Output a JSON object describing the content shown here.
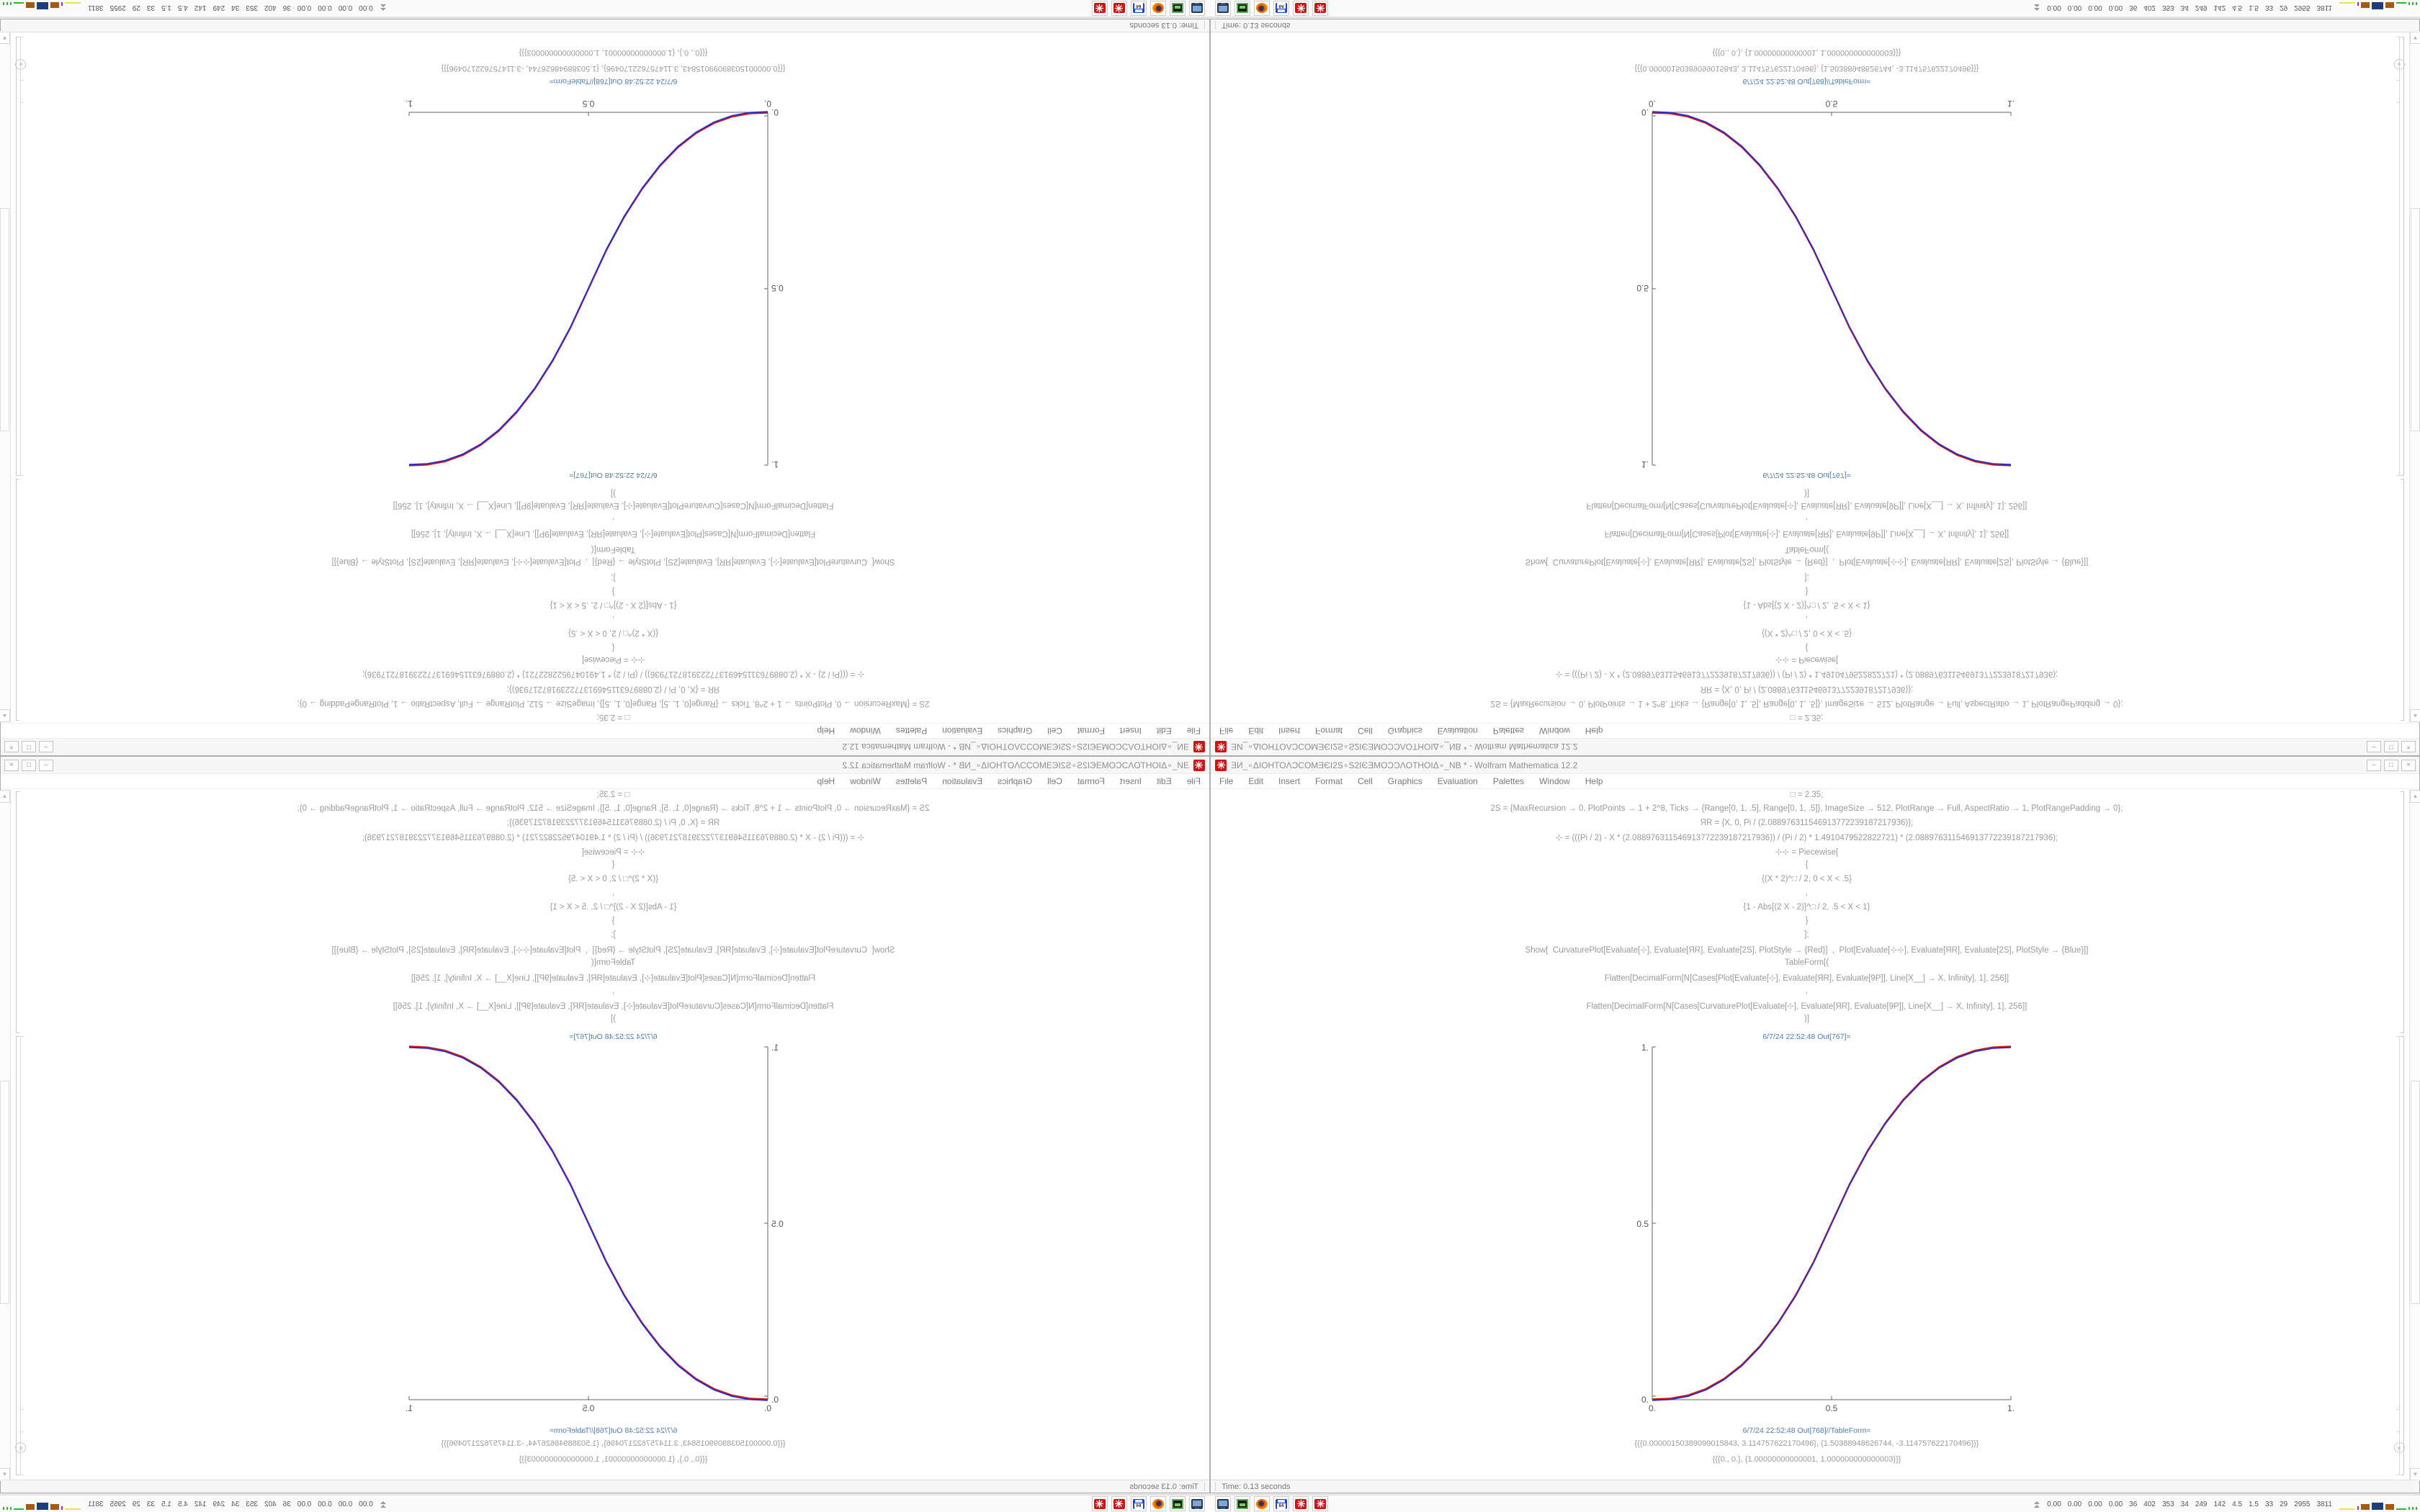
{
  "window": {
    "title": "ƎИ_∘ΔIOHTOΛƆCOMƎЄI2S∘S2IЄƎMOƆƆΛOTHOIΔ∘_NB * - Wolfram Mathematica 12.2",
    "controls": {
      "minimize": "–",
      "maximize": "□",
      "close": "×"
    },
    "app_icon_color": "#cc1616"
  },
  "menu": {
    "items": [
      "File",
      "Edit",
      "Insert",
      "Format",
      "Cell",
      "Graphics",
      "Evaluation",
      "Palettes",
      "Window",
      "Help"
    ]
  },
  "notebook": {
    "code_lines": [
      "□ = 2.35;",
      "2S = {MaxRecursion → 0, PlotPoints → 1 + 2^8, Ticks → {Range[0, 1, .5], Range[0, 1, .5]}, ImageSize → 512, PlotRange → Full, AspectRatio → 1, PlotRangePadding → 0};",
      "ЯR = {X, 0, Pi / (2.088976311546913772239187217936)};",
      "⊹ = (((Pi / 2) - X * (2.088976311546913772239187217936)) / (Pi / 2) * 1.4910479522822721) * (2.088976311546913772239187217936);",
      "⊹⊹ = Piecewise[",
      "{",
      "{(X * 2)^□ / 2, 0 < X < .5}",
      ",",
      "{1 - Abs[(2 X - 2)]^□ / 2, .5 < X < 1}",
      "}",
      "];",
      "Show[  CurvaturePlot[Evaluate[⊹], Evaluate[ЯR], Evaluate[2S], PlotStyle → {Red}]  ,  Plot[Evaluate[⊹⊹], Evaluate[ЯR], Evaluate[2S], PlotStyle → {Blue}]]",
      "TableForm[(",
      "Flatten[DecimalForm[N[Cases[Plot[Evaluate[⊹], Evaluate[ЯR], Evaluate[9P]], Line[X__] → X, Infinity], 1], 256]]",
      ",",
      "Flatten[DecimalForm[N[Cases[CurvaturePlot[Evaluate[⊹], Evaluate[ЯR], Evaluate[9P]], Line[X__] → X, Infinity], 1], 256]]",
      ")]"
    ],
    "out_plot_label": "6/7/24 22:52:48 Out[767]=",
    "out_table_label": "6/7/24 22:52:48 Out[768]//TableForm=",
    "table_rows": [
      "{{{0.00000150389099015843, 3.114757622170496}, {1.50388948626744, -3.114757622170496}}}",
      "{{{0., 0.}, {1.00000000000001, 1.000000000000003}}}"
    ],
    "scroll_up_glyph": "▲",
    "scroll_down_glyph": "▼",
    "jump_end_glyph": "»"
  },
  "status_bar": {
    "time_text": "Time: 0.13 seconds"
  },
  "taskbar": {
    "icons": [
      "display-settings-icon",
      "package-drive-icon",
      "firefox-icon",
      "floppy-64-icon",
      "mathematica-icon",
      "mathematica-icon"
    ],
    "stats": [
      "0.00",
      "0.00",
      "0.00",
      "0.00",
      "36",
      "402",
      "353",
      "34",
      "249",
      "142",
      "4.5",
      "1.5",
      "33",
      "29",
      "2955",
      "3811"
    ],
    "graph_colors": [
      "#e8e455",
      "#8b2fc9",
      "#a45a10",
      "#1f3d7a",
      "#a45a10",
      "#35b235",
      "#35b235"
    ]
  },
  "colors": {
    "curve_red": "#d01818",
    "curve_blue": "#2a2ac8",
    "cell_label_blue": "#4e7bb0",
    "code_gray": "#9a9a9a",
    "app_red": "#cc1616"
  },
  "chart_data": {
    "type": "line",
    "title": "6/7/24 22:52:48 Out[767]=",
    "xlabel": "",
    "ylabel": "",
    "xlim": [
      0,
      1
    ],
    "ylim": [
      0,
      1
    ],
    "xticks": [
      "0.",
      "0.5",
      "1."
    ],
    "yticks_top_to_bottom": [
      "1.",
      "0.5",
      "0."
    ],
    "grid": false,
    "legend": "none",
    "x": [
      0,
      0.05,
      0.1,
      0.15,
      0.2,
      0.25,
      0.3,
      0.35,
      0.4,
      0.45,
      0.5,
      0.55,
      0.6,
      0.65,
      0.7,
      0.75,
      0.8,
      0.85,
      0.9,
      0.95,
      1
    ],
    "series": [
      {
        "name": "CurvaturePlot (Red)",
        "color": "#d01818",
        "values": [
          0,
          0.0022,
          0.0114,
          0.0295,
          0.0581,
          0.098,
          0.1506,
          0.2162,
          0.2958,
          0.3903,
          0.5,
          0.6097,
          0.7042,
          0.7838,
          0.8494,
          0.902,
          0.9419,
          0.9705,
          0.9886,
          0.9978,
          1
        ]
      },
      {
        "name": "Plot Piecewise (Blue)",
        "color": "#2a2ac8",
        "values": [
          0,
          0.0022,
          0.0114,
          0.0295,
          0.0581,
          0.098,
          0.1506,
          0.2162,
          0.2958,
          0.3903,
          0.5,
          0.6097,
          0.7042,
          0.7838,
          0.8494,
          0.902,
          0.9419,
          0.9705,
          0.9886,
          0.9978,
          1
        ]
      }
    ]
  }
}
